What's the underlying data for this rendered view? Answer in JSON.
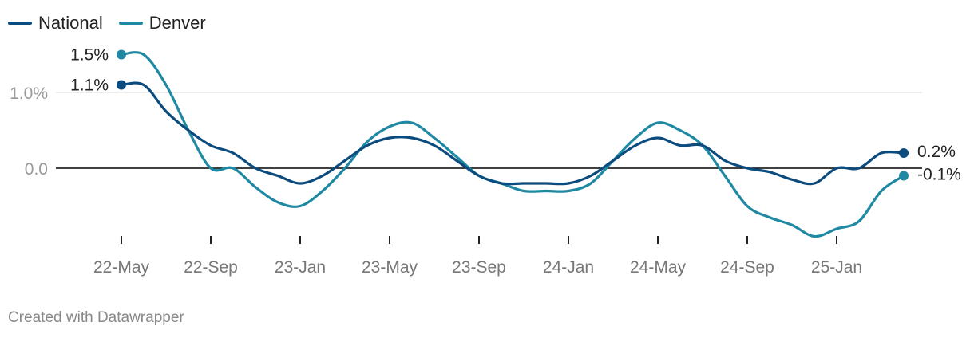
{
  "legend": {
    "national": "National",
    "denver": "Denver"
  },
  "footer": "Created with Datawrapper",
  "colors": {
    "national": "#0b4b7e",
    "denver": "#1f88a3",
    "grid": "#e0e0e0",
    "zero": "#000000",
    "tick_label": "#999999",
    "axis_label": "#777777"
  },
  "chart_data": {
    "type": "line",
    "title": "",
    "xlabel": "",
    "ylabel": "",
    "ylim": [
      -0.9,
      1.6
    ],
    "grid": true,
    "legend_position": "top-left",
    "y_ticks": [
      {
        "value": 1.0,
        "label": "1.0%"
      },
      {
        "value": 0.0,
        "label": "0.0"
      }
    ],
    "x_ticks": [
      {
        "label": "22-May",
        "index": 0
      },
      {
        "label": "22-Sep",
        "index": 4
      },
      {
        "label": "23-Jan",
        "index": 8
      },
      {
        "label": "23-May",
        "index": 12
      },
      {
        "label": "23-Sep",
        "index": 16
      },
      {
        "label": "24-Jan",
        "index": 20
      },
      {
        "label": "24-May",
        "index": 24
      },
      {
        "label": "24-Sep",
        "index": 28
      },
      {
        "label": "25-Jan",
        "index": 32
      }
    ],
    "x": [
      "2022-05",
      "2022-06",
      "2022-07",
      "2022-08",
      "2022-09",
      "2022-10",
      "2022-11",
      "2022-12",
      "2023-01",
      "2023-02",
      "2023-03",
      "2023-04",
      "2023-05",
      "2023-06",
      "2023-07",
      "2023-08",
      "2023-09",
      "2023-10",
      "2023-11",
      "2023-12",
      "2024-01",
      "2024-02",
      "2024-03",
      "2024-04",
      "2024-05",
      "2024-06",
      "2024-07",
      "2024-08",
      "2024-09",
      "2024-10",
      "2024-11",
      "2024-12",
      "2025-01",
      "2025-02",
      "2025-03",
      "2025-04"
    ],
    "series": [
      {
        "name": "National",
        "color": "#0b4b7e",
        "values": [
          1.1,
          1.1,
          0.75,
          0.5,
          0.3,
          0.2,
          0.0,
          -0.1,
          -0.2,
          -0.1,
          0.1,
          0.3,
          0.4,
          0.4,
          0.3,
          0.1,
          -0.1,
          -0.2,
          -0.2,
          -0.2,
          -0.2,
          -0.1,
          0.1,
          0.3,
          0.4,
          0.3,
          0.3,
          0.1,
          0.0,
          -0.05,
          -0.15,
          -0.2,
          0.0,
          0.0,
          0.2,
          0.2
        ],
        "end_labels": {
          "first": "1.1%",
          "last": "0.2%"
        }
      },
      {
        "name": "Denver",
        "color": "#1f88a3",
        "values": [
          1.5,
          1.5,
          1.1,
          0.5,
          0.0,
          0.0,
          -0.25,
          -0.45,
          -0.5,
          -0.3,
          0.0,
          0.35,
          0.55,
          0.6,
          0.4,
          0.15,
          -0.1,
          -0.2,
          -0.3,
          -0.3,
          -0.3,
          -0.2,
          0.1,
          0.4,
          0.6,
          0.5,
          0.3,
          -0.1,
          -0.5,
          -0.65,
          -0.75,
          -0.9,
          -0.8,
          -0.7,
          -0.3,
          -0.1
        ],
        "end_labels": {
          "first": "1.5%",
          "last": "-0.1%"
        }
      }
    ]
  }
}
